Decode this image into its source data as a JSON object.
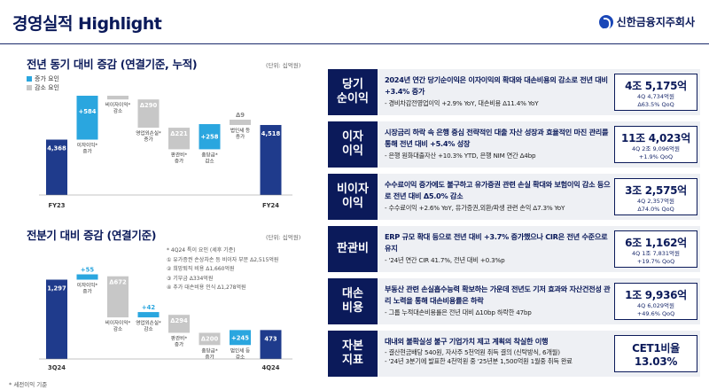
{
  "header": {
    "title": "경영실적 Highlight",
    "logo_text": "신한금융지주회사"
  },
  "yoy": {
    "title": "전년 동기 대비 증감 (연결기준, 누적)",
    "unit": "(단위: 십억원)",
    "legend": {
      "increase": "증가 요인",
      "decrease": "감소 요인"
    },
    "bars": [
      {
        "value": "4,368",
        "label": "",
        "axis": "FY23"
      },
      {
        "value": "+584",
        "label": "이자이익*\n증가"
      },
      {
        "value": "Δ172",
        "label": "비이자이익*\n감소"
      },
      {
        "value": "Δ290",
        "label": "영업외손실*\n증가"
      },
      {
        "value": "Δ221",
        "label": "판관비*\n증가"
      },
      {
        "value": "+258",
        "label": "충당금*\n감소"
      },
      {
        "value": "Δ9",
        "label": "법인세 등\n증가"
      },
      {
        "value": "4,518",
        "label": "",
        "axis": "FY24"
      }
    ]
  },
  "qoq": {
    "title": "전분기 대비 증감 (연결기준)",
    "unit": "(단위: 십억원)",
    "notes": [
      "* 4Q24 특이 요인 (세후 기준)",
      "① 유가증권 손상차손 등 비이자 부문 Δ2,515억원",
      "② 희망퇴직 비용 Δ1,660억원",
      "③ 기부금 Δ334억원",
      "④ 추가 대손비용 인식 Δ1,278억원"
    ],
    "bars": [
      {
        "value": "1,297",
        "label": "",
        "axis": "3Q24"
      },
      {
        "value": "+55",
        "label": "이자이익*\n증가"
      },
      {
        "value": "Δ672",
        "label": "비이자이익*\n감소"
      },
      {
        "value": "+42",
        "label": "영업외손실*\n감소"
      },
      {
        "value": "Δ294",
        "label": "판관비*\n증가"
      },
      {
        "value": "Δ200",
        "label": "충당금*\n증가"
      },
      {
        "value": "+245",
        "label": "법인세 등\n감소"
      },
      {
        "value": "473",
        "label": "",
        "axis": "4Q24"
      }
    ]
  },
  "footnote": "* 세전이익 기준",
  "rows": [
    {
      "label": "당기\n순이익",
      "main": "2024년 연간 당기순이익은 이자이익의 확대와 대손비용의 감소로 전년 대비 +3.4% 증가",
      "sub": [
        "- 경비차감전영업이익 +2.9% YoY, 대손비용 Δ11.4% YoY"
      ],
      "box_main": "4조 5,175억",
      "box_sub": [
        "4Q 4,734억원",
        "Δ63.5% QoQ"
      ]
    },
    {
      "label": "이자\n이익",
      "main": "시장금리 하락 속 은행 중심 전략적인 대출 자산 성장과 효율적인 마진 관리를 통해 전년 대비 +5.4% 성장",
      "sub": [
        "- 은행 원화대출자산 +10.3% YTD, 은행 NIM 연간 Δ4bp"
      ],
      "box_main": "11조 4,023억",
      "box_sub": [
        "4Q 2조 9,096억원",
        "+1.9% QoQ"
      ]
    },
    {
      "label": "비이자\n이익",
      "main": "수수료이익 증가에도 불구하고 유가증권 관련 손실 확대와 보험이익 감소 등으로 전년 대비 Δ5.0% 감소",
      "sub": [
        "- 수수료이익 +2.6% YoY, 유가증권,외환/파생 관련 손익 Δ7.3% YoY"
      ],
      "box_main": "3조 2,575억",
      "box_sub": [
        "4Q 2,357억원",
        "Δ74.0% QoQ"
      ]
    },
    {
      "label": "판관비",
      "main": "ERP 규모 확대 등으로 전년 대비 +3.7% 증가했으나 CIR은 전년 수준으로 유지",
      "sub": [
        "- '24년 연간 CIR 41.7%, 전년 대비 +0.3%p"
      ],
      "box_main": "6조 1,162억",
      "box_sub": [
        "4Q 1조 7,831억원",
        "+19.7% QoQ"
      ]
    },
    {
      "label": "대손\n비용",
      "main": "부동산 관련 손실흡수능력 확보하는 가운데 전년도 기저 효과와 자산건전성 관리 노력을 통해 대손비용률은 하락",
      "sub": [
        "- 그룹 누적대손비용률은 전년 대비 Δ10bp 하락한 47bp"
      ],
      "box_main": "1조 9,936억",
      "box_sub": [
        "4Q 6,029억원",
        "+49.6% QoQ"
      ]
    },
    {
      "label": "자본\n지표",
      "main": "대내외 불확실성 불구 기업가치 제고 계획의 착실한 이행",
      "sub": [
        "- 결산현금배당 540원, 자사주 5천억원 취득 결의 (신탁방식, 6개월)",
        "- '24년 3분기에 발표한 4천억원 중 '25년분 1,500억원 1월중 취득 완료"
      ],
      "box_main": "CET1비율",
      "box_sub2": "13.03%"
    }
  ],
  "colors": {
    "navy": "#0b1a5a",
    "total": "#1f3b8c",
    "increase": "#2aa6df",
    "decrease": "#c7c7c7"
  }
}
